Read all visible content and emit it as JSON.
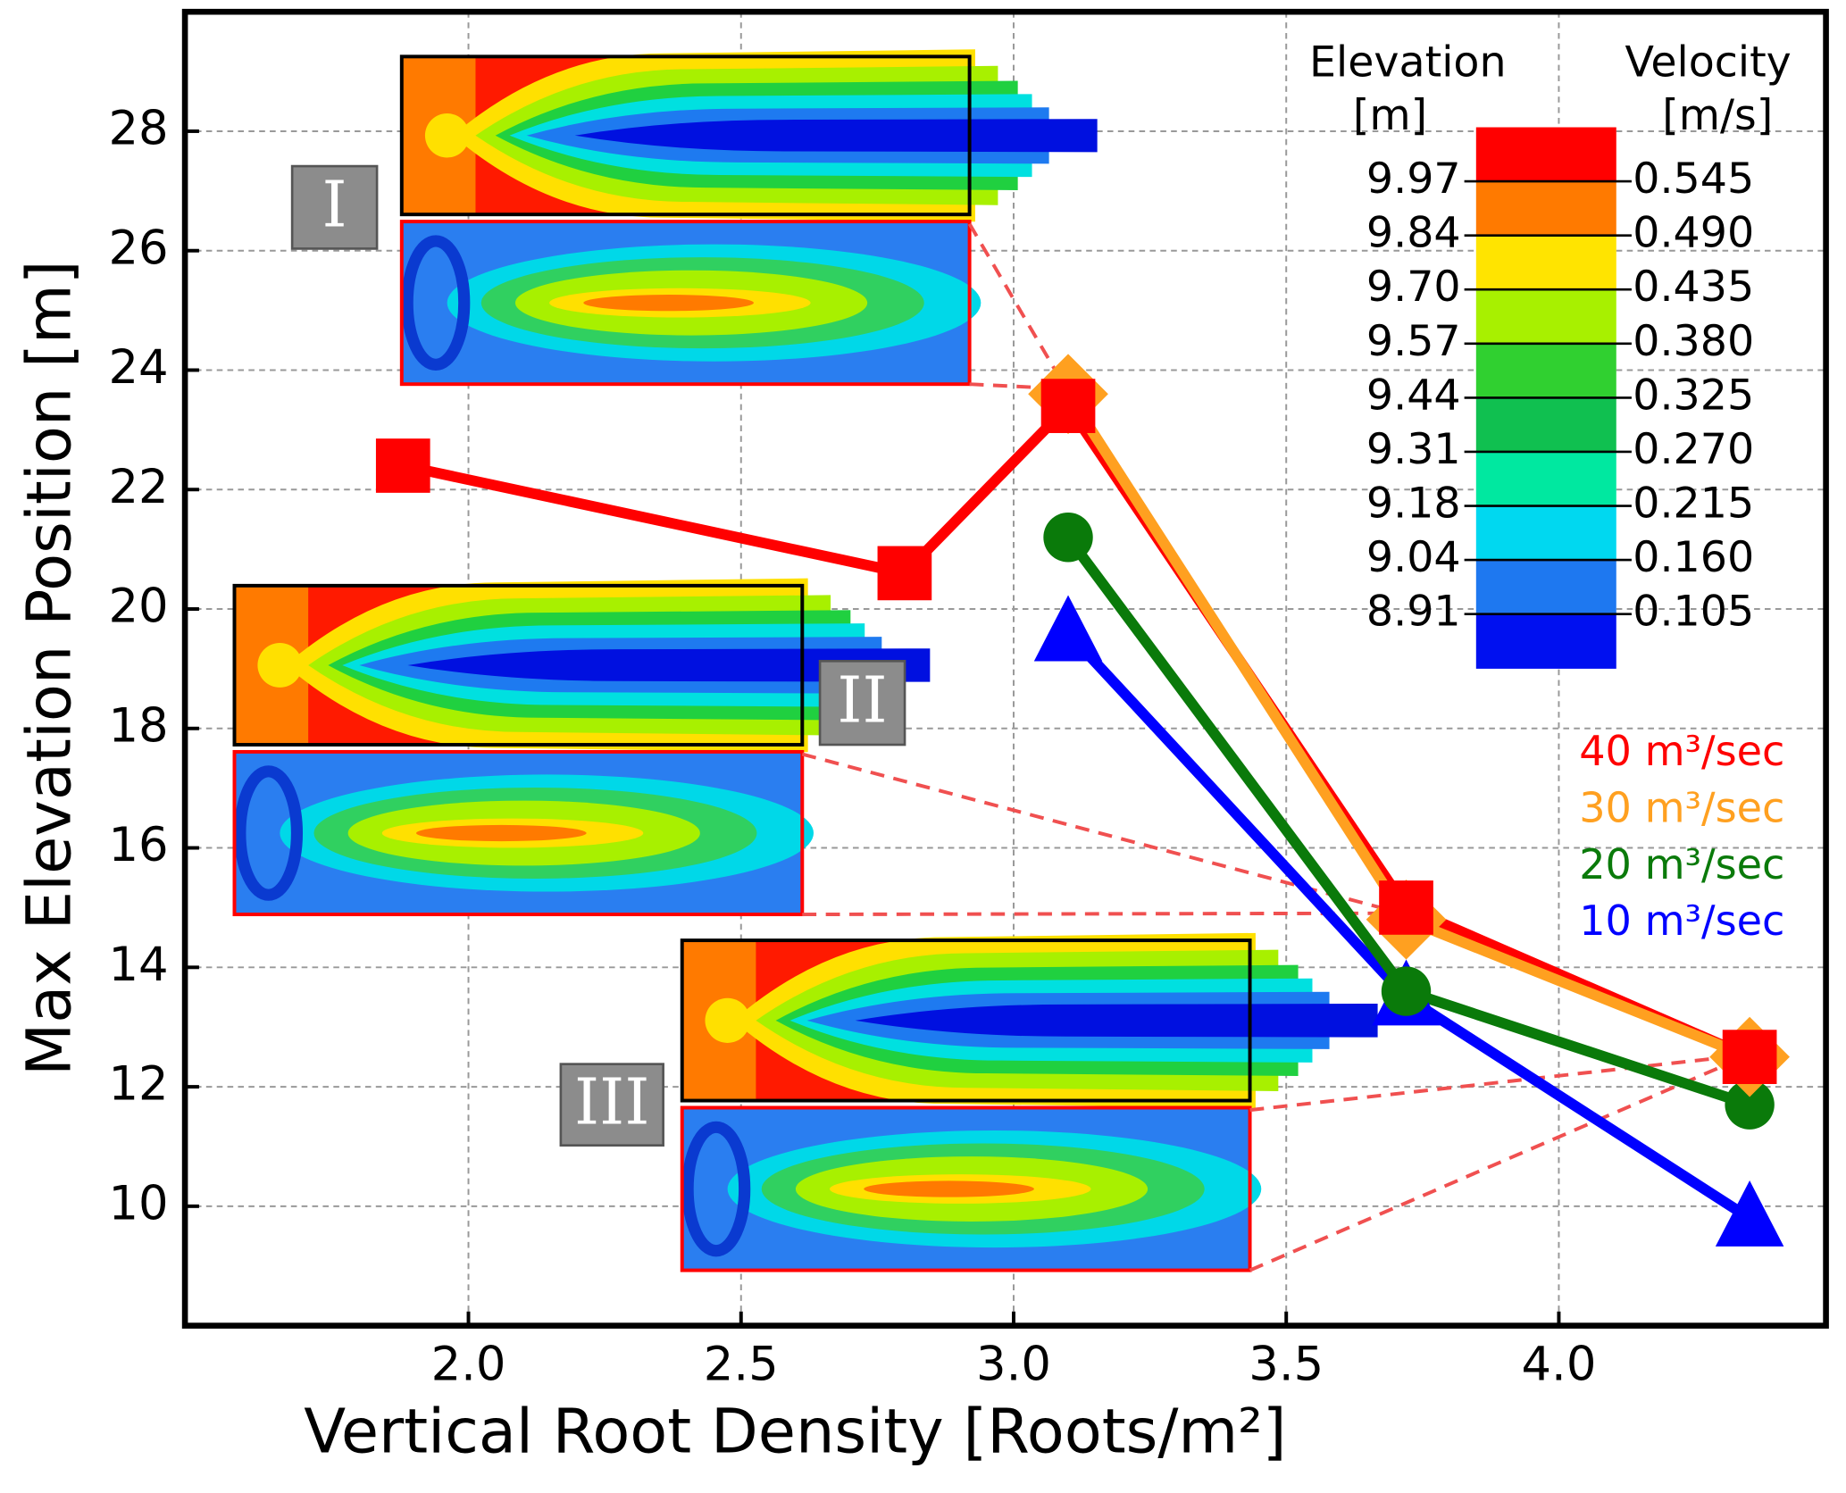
{
  "chart_data": {
    "type": "line",
    "x_label": "Vertical Root Density [Roots/m²]",
    "y_label": "Max Elevation Position [m]",
    "x": [
      1.88,
      2.8,
      3.1,
      3.72,
      4.35
    ],
    "series": [
      {
        "name": "40 m³/sec",
        "color": "#ff0000",
        "marker": "square",
        "values": [
          22.4,
          20.6,
          23.4,
          15.0,
          12.5
        ]
      },
      {
        "name": "30 m³/sec",
        "color": "#ffa020",
        "marker": "diamond",
        "values": [
          null,
          null,
          23.6,
          14.8,
          12.5
        ]
      },
      {
        "name": "20 m³/sec",
        "color": "#0a7a0a",
        "marker": "circle",
        "values": [
          null,
          null,
          21.2,
          13.6,
          11.7
        ]
      },
      {
        "name": "10 m³/sec",
        "color": "#0000ff",
        "marker": "triangle",
        "values": [
          null,
          null,
          19.6,
          13.5,
          9.8
        ]
      }
    ],
    "xlim": [
      1.48,
      4.49
    ],
    "ylim": [
      8,
      30
    ],
    "xticks": [
      {
        "value": 2,
        "label": "2.0"
      },
      2.5,
      {
        "value": 3,
        "label": "3.0"
      },
      3.5,
      {
        "value": 4,
        "label": "4.0"
      }
    ],
    "yticks": [
      10,
      12,
      14,
      16,
      18,
      20,
      22,
      24,
      26,
      28
    ],
    "grid": true,
    "legend": "right",
    "annotations": [
      "I",
      "II",
      "III"
    ],
    "colorbar": {
      "left_title": "Elevation",
      "left_unit": "[m]",
      "right_title": "Velocity",
      "right_unit": "[m/s]",
      "left_labels": [
        "9.97",
        "9.84",
        "9.70",
        "9.57",
        "9.44",
        "9.31",
        "9.18",
        "9.04",
        "8.91"
      ],
      "right_labels": [
        "0.545",
        "0.490",
        "0.435",
        "0.380",
        "0.325",
        "0.270",
        "0.215",
        "0.160",
        "0.105"
      ]
    }
  }
}
